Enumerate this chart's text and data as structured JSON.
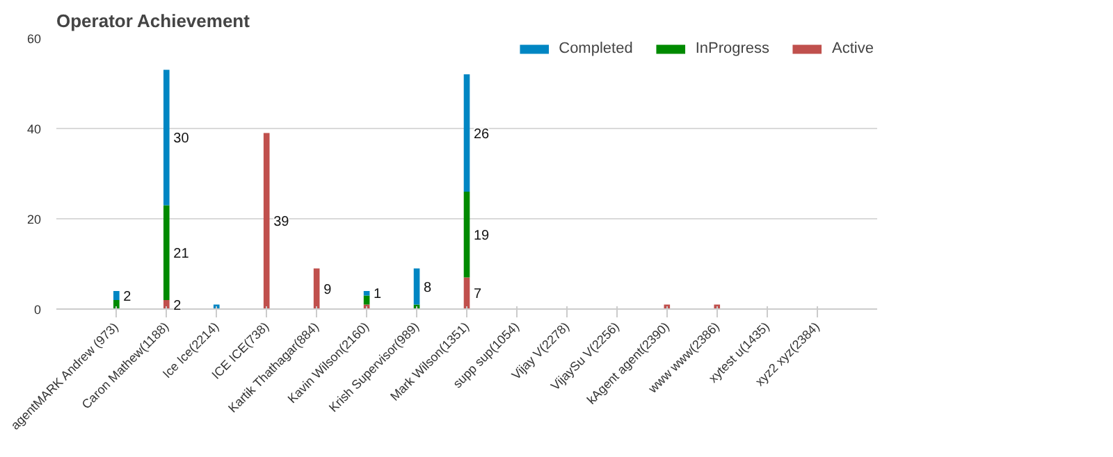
{
  "chart_data": {
    "type": "bar",
    "title": "Operator Achievement",
    "stacked": true,
    "grid": "y",
    "legend": "top right",
    "categories": [
      "agentMARK Andrew (973)",
      "Caron Mathew(1188)",
      "Ice Ice(2214)",
      "ICE ICE(738)",
      "Kartik Thathagar(884)",
      "Kavin Wilson(2160)",
      "Krish Supervisor(989)",
      "Mark Wilson(1351)",
      "supp sup(1054)",
      "Vijay V(2278)",
      "VijaySu V(2256)",
      "kAgent agent(2390)",
      "www www(2386)",
      "xytest u(1435)",
      "xyz2 xyz(2384)"
    ],
    "ylim": [
      0,
      60
    ],
    "yticks": [
      0,
      20,
      40,
      60
    ],
    "series": [
      {
        "name": "Active",
        "color": "#c0504d",
        "values": [
          null,
          2,
          null,
          39,
          9,
          1,
          null,
          7,
          null,
          null,
          null,
          1,
          1,
          null,
          null
        ],
        "value_labels": [
          null,
          "2",
          null,
          "39",
          "9",
          null,
          null,
          "7",
          null,
          null,
          null,
          null,
          null,
          null,
          null
        ]
      },
      {
        "name": "InProgress",
        "color": "#008a00",
        "values": [
          2,
          21,
          null,
          null,
          null,
          2,
          1,
          19,
          null,
          null,
          null,
          null,
          null,
          null,
          null
        ],
        "value_labels": [
          null,
          "21",
          null,
          null,
          null,
          null,
          null,
          "19",
          null,
          null,
          null,
          null,
          null,
          null,
          null
        ]
      },
      {
        "name": "Completed",
        "color": "#0086c3",
        "values": [
          2,
          30,
          1,
          null,
          null,
          1,
          8,
          26,
          null,
          null,
          null,
          null,
          null,
          null,
          null
        ],
        "value_labels": [
          "2",
          "30",
          null,
          null,
          null,
          "1",
          "8",
          "26",
          null,
          null,
          null,
          null,
          null,
          null,
          null
        ]
      }
    ]
  }
}
